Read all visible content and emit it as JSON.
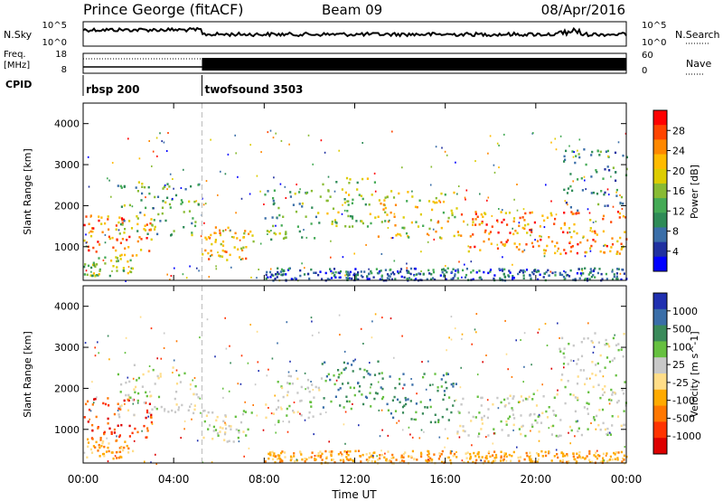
{
  "chart_data": {
    "type": "heatmap",
    "title": {
      "station": "Prince George (fitACF)",
      "beam": "Beam 09",
      "date": "08/Apr/2016"
    },
    "header_strips": {
      "nsky": {
        "label": "N.Sky",
        "right_label": "N.Search",
        "left_ticks": [
          "10^5",
          "10^0"
        ],
        "right_ticks": [
          "10^5",
          "10^0"
        ]
      },
      "freq": {
        "label_line1": "Freq.",
        "label_line2": "[MHz]",
        "left_ticks": [
          "18",
          "8"
        ],
        "right_label": "Nave",
        "right_ticks": [
          "60",
          "0"
        ]
      },
      "cpid": {
        "label": "CPID",
        "modes": [
          {
            "name": "rbsp 200",
            "start_hour": 0.0
          },
          {
            "name": "twofsound 3503",
            "start_hour": 5.25
          }
        ]
      }
    },
    "x_axis": {
      "label": "Time UT",
      "range_hours": [
        0,
        24
      ],
      "tick_hours": [
        0,
        4,
        8,
        12,
        16,
        20,
        24
      ],
      "tick_labels": [
        "00:00",
        "04:00",
        "08:00",
        "12:00",
        "16:00",
        "20:00",
        "00:00"
      ]
    },
    "panels": [
      {
        "id": "power",
        "ylabel": "Slant Range [km]",
        "ylim": [
          180,
          4500
        ],
        "yticks": [
          1000,
          2000,
          3000,
          4000
        ],
        "colorbar": {
          "label": "Power [dB]",
          "ticks": [
            "28",
            "24",
            "20",
            "16",
            "12",
            "8",
            "4"
          ],
          "colors": [
            "#ff0000",
            "#ff4400",
            "#ff8800",
            "#ffbb00",
            "#ddcc00",
            "#88bb33",
            "#44aa55",
            "#2e8b57",
            "#3a6ea8",
            "#2030a0",
            "#0000ff"
          ]
        }
      },
      {
        "id": "velocity",
        "ylabel": "Slant Range [km]",
        "ylim": [
          180,
          4500
        ],
        "yticks": [
          1000,
          2000,
          3000,
          4000
        ],
        "colorbar": {
          "label": "Velocity [m s^-1]",
          "ticks": [
            "1000",
            "500",
            "100",
            "25",
            "-25",
            "-100",
            "-500",
            "-1000"
          ],
          "colors": [
            "#2030b0",
            "#3a6ea8",
            "#3a8a5a",
            "#66c040",
            "#c8c8c8",
            "#ffdd88",
            "#ffaa00",
            "#ff7700",
            "#ff3300",
            "#dd0000"
          ]
        }
      }
    ],
    "echo_bands": [
      {
        "hours": [
          0.0,
          3.0
        ],
        "range_km": [
          800,
          1800
        ],
        "power_level": 8,
        "velocity_level": 8
      },
      {
        "hours": [
          0.0,
          2.2
        ],
        "range_km": [
          300,
          800
        ],
        "power_level": 5,
        "velocity_level": 6
      },
      {
        "hours": [
          1.5,
          5.2
        ],
        "range_km": [
          1300,
          2600
        ],
        "power_level": 4,
        "velocity_level": 4
      },
      {
        "hours": [
          5.2,
          7.5
        ],
        "range_km": [
          700,
          1500
        ],
        "power_level": 7,
        "velocity_level": 4
      },
      {
        "hours": [
          8.0,
          10.5
        ],
        "range_km": [
          1200,
          2400
        ],
        "power_level": 4,
        "velocity_level": 4
      },
      {
        "hours": [
          10.5,
          13.0
        ],
        "range_km": [
          1500,
          2700
        ],
        "power_level": 5,
        "velocity_level": 2
      },
      {
        "hours": [
          13.0,
          16.5
        ],
        "range_km": [
          1200,
          2400
        ],
        "power_level": 6,
        "velocity_level": 2
      },
      {
        "hours": [
          16.5,
          24.0
        ],
        "range_km": [
          850,
          1900
        ],
        "power_level": 8,
        "velocity_level": 4
      },
      {
        "hours": [
          21.0,
          24.0
        ],
        "range_km": [
          1900,
          3400
        ],
        "power_level": 3,
        "velocity_level": 4
      },
      {
        "hours": [
          8.0,
          24.0
        ],
        "range_km": [
          200,
          500
        ],
        "power_level": 2,
        "velocity_level": 6
      }
    ]
  }
}
